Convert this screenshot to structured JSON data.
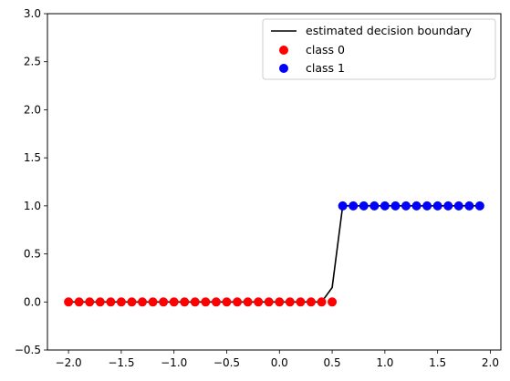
{
  "chart_data": {
    "type": "line",
    "title": "",
    "xlabel": "",
    "ylabel": "",
    "xlim": [
      -2.2,
      2.1
    ],
    "ylim": [
      -0.5,
      3.0
    ],
    "xticks": [
      -2.0,
      -1.5,
      -1.0,
      -0.5,
      0.0,
      0.5,
      1.0,
      1.5,
      2.0
    ],
    "xtick_labels": [
      "−2.0",
      "−1.5",
      "−1.0",
      "−0.5",
      "0.0",
      "0.5",
      "1.0",
      "1.5",
      "2.0"
    ],
    "yticks": [
      -0.5,
      0.0,
      0.5,
      1.0,
      1.5,
      2.0,
      2.5,
      3.0
    ],
    "ytick_labels": [
      "−0.5",
      "0.0",
      "0.5",
      "1.0",
      "1.5",
      "2.0",
      "2.5",
      "3.0"
    ],
    "grid": false,
    "legend_position": "top-right",
    "series": [
      {
        "name": "estimated decision boundary",
        "kind": "line",
        "color": "#000000",
        "x": [
          -2.0,
          -1.9,
          -1.8,
          -1.7,
          -1.6,
          -1.5,
          -1.4,
          -1.3,
          -1.2,
          -1.1,
          -1.0,
          -0.9,
          -0.8,
          -0.7,
          -0.6,
          -0.5,
          -0.4,
          -0.3,
          -0.2,
          -0.1,
          0.0,
          0.1,
          0.2,
          0.3,
          0.4,
          0.5,
          0.6,
          0.7,
          0.8,
          0.9,
          1.0,
          1.1,
          1.2,
          1.3,
          1.4,
          1.5,
          1.6,
          1.7,
          1.8,
          1.9
        ],
        "y": [
          0,
          0,
          0,
          0,
          0,
          0,
          0,
          0,
          0,
          0,
          0,
          0,
          0,
          0,
          0,
          0,
          0,
          0,
          0,
          0,
          0,
          0,
          0,
          0,
          0,
          0.15,
          1,
          1,
          1,
          1,
          1,
          1,
          1,
          1,
          1,
          1,
          1,
          1,
          1,
          1
        ]
      },
      {
        "name": "class 0",
        "kind": "scatter",
        "color": "#ff0000",
        "x": [
          -2.0,
          -1.9,
          -1.8,
          -1.7,
          -1.6,
          -1.5,
          -1.4,
          -1.3,
          -1.2,
          -1.1,
          -1.0,
          -0.9,
          -0.8,
          -0.7,
          -0.6,
          -0.5,
          -0.4,
          -0.3,
          -0.2,
          -0.1,
          0.0,
          0.1,
          0.2,
          0.3,
          0.4,
          0.5
        ],
        "y": [
          0,
          0,
          0,
          0,
          0,
          0,
          0,
          0,
          0,
          0,
          0,
          0,
          0,
          0,
          0,
          0,
          0,
          0,
          0,
          0,
          0,
          0,
          0,
          0,
          0,
          0
        ]
      },
      {
        "name": "class 1",
        "kind": "scatter",
        "color": "#0000ff",
        "x": [
          0.6,
          0.7,
          0.8,
          0.9,
          1.0,
          1.1,
          1.2,
          1.3,
          1.4,
          1.5,
          1.6,
          1.7,
          1.8,
          1.9
        ],
        "y": [
          1,
          1,
          1,
          1,
          1,
          1,
          1,
          1,
          1,
          1,
          1,
          1,
          1,
          1
        ]
      }
    ]
  }
}
